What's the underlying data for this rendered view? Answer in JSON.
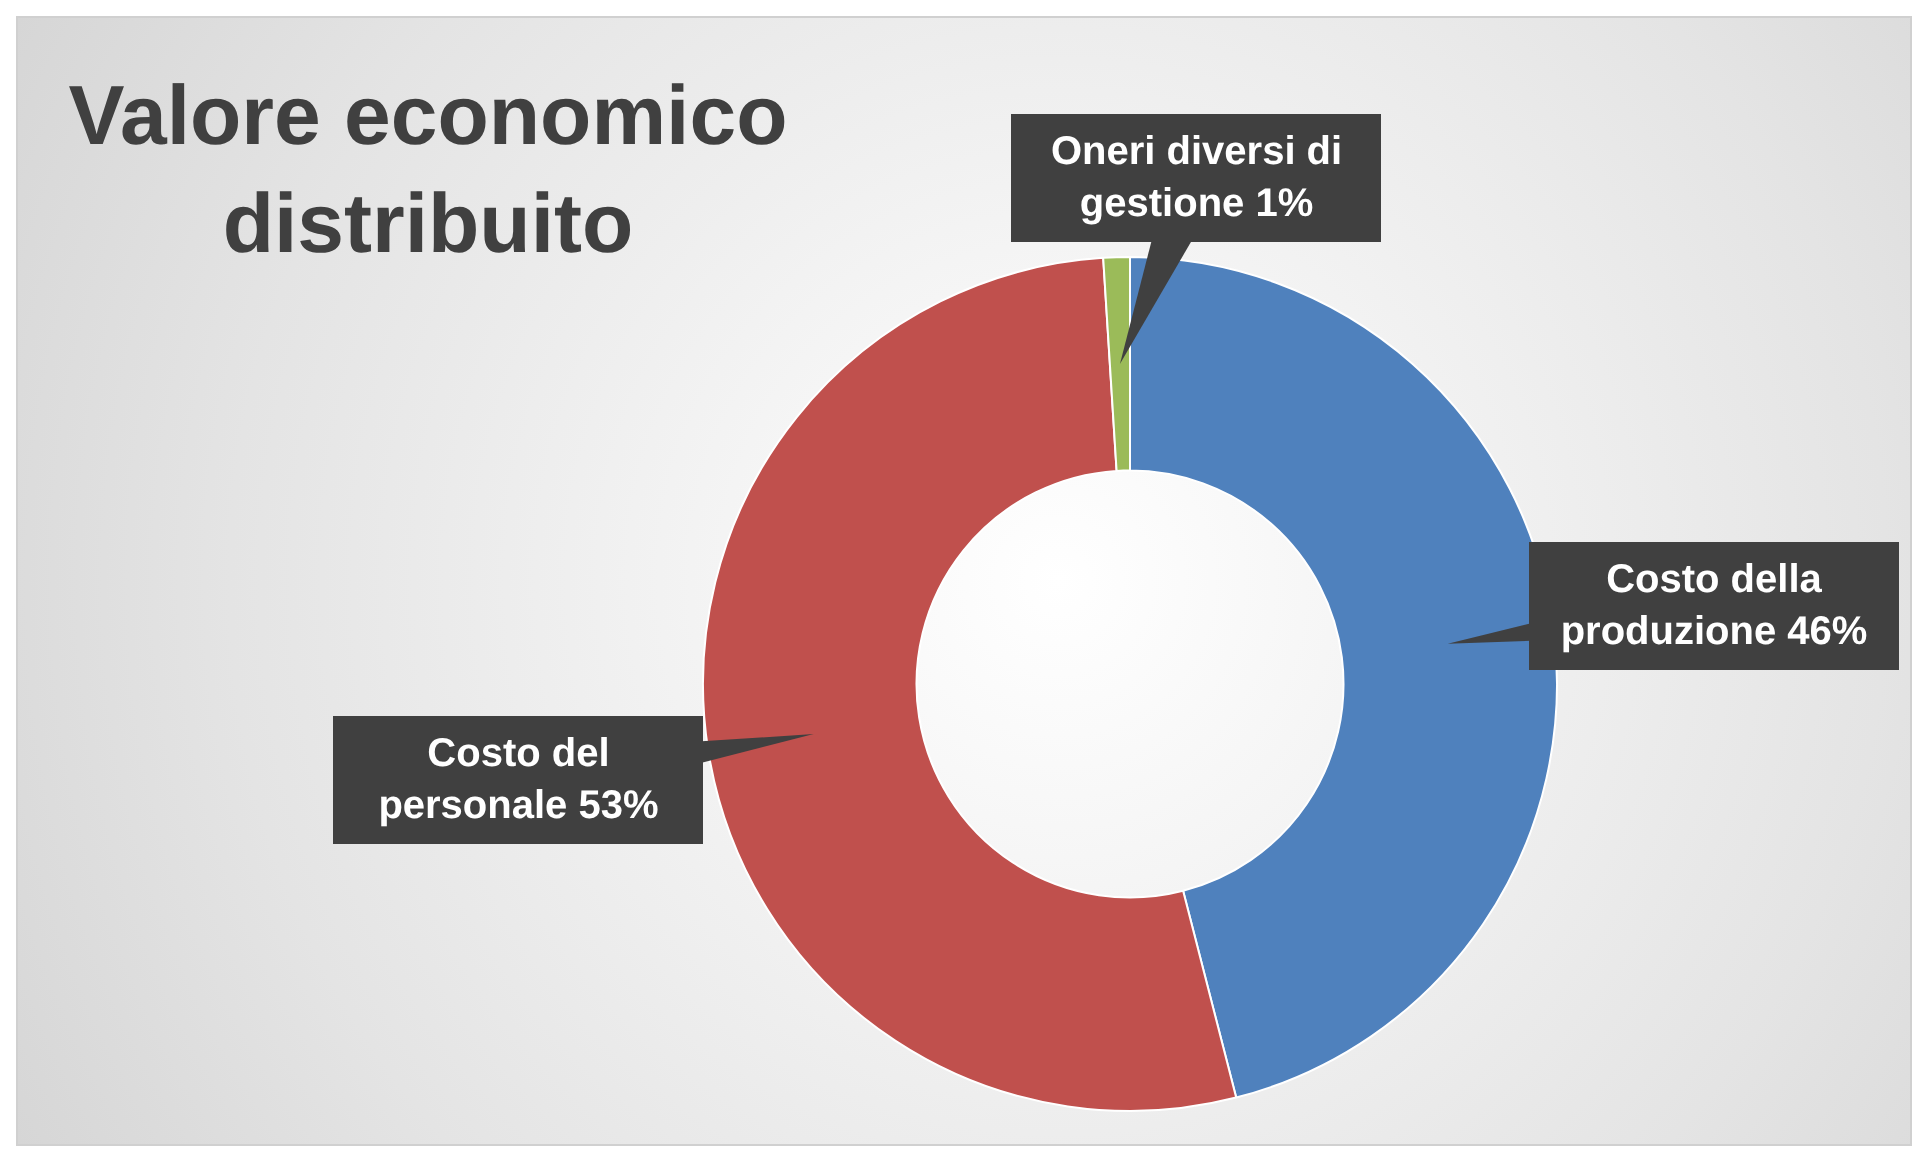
{
  "chart_data": {
    "type": "donut",
    "title": "Valore economico distribuito",
    "categories": [
      "Costo della produzione",
      "Costo del personale",
      "Oneri diversi di gestione"
    ],
    "values": [
      46,
      53,
      1
    ],
    "colors": [
      "#4f81bd",
      "#c0504d",
      "#9bbb59"
    ],
    "value_labels": [
      "46%",
      "53%",
      "1%"
    ],
    "legend": false
  }
}
